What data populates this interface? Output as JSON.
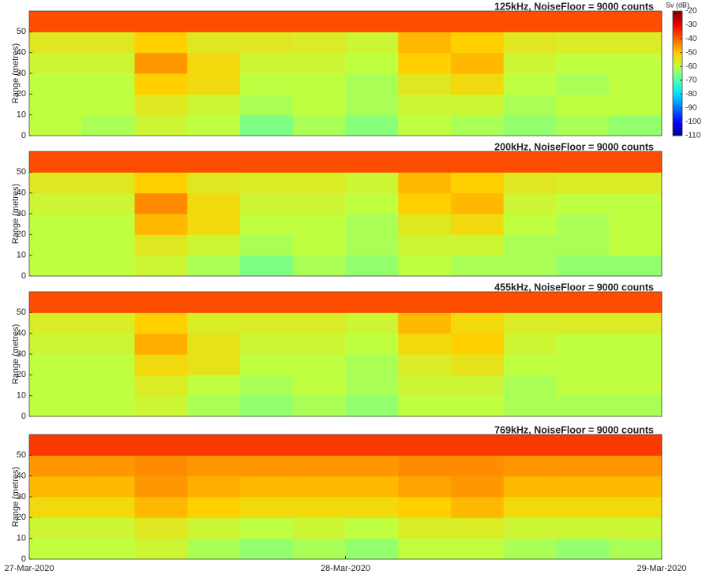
{
  "chart_data": [
    {
      "type": "heatmap",
      "title": "125kHz, NoiseFloor = 9000 counts",
      "ylabel": "Range (metres)",
      "x_bins": [
        "2020-03-27T00:00",
        "2020-03-27T04:00",
        "2020-03-27T08:00",
        "2020-03-27T12:00",
        "2020-03-27T16:00",
        "2020-03-27T20:00",
        "2020-03-28T00:00",
        "2020-03-28T04:00",
        "2020-03-28T08:00",
        "2020-03-28T12:00",
        "2020-03-28T16:00",
        "2020-03-28T20:00",
        "2020-03-29T00:00"
      ],
      "y_bins": [
        0,
        10,
        20,
        30,
        40,
        50,
        60
      ],
      "values": [
        [
          -60,
          -62,
          -58,
          -60,
          -66,
          -62,
          -65,
          -60,
          -62,
          -64,
          -62,
          -64
        ],
        [
          -60,
          -60,
          -55,
          -58,
          -62,
          -60,
          -62,
          -58,
          -58,
          -62,
          -60,
          -60
        ],
        [
          -60,
          -60,
          -50,
          -52,
          -60,
          -60,
          -62,
          -55,
          -52,
          -60,
          -62,
          -60
        ],
        [
          -58,
          -58,
          -45,
          -52,
          -58,
          -58,
          -60,
          -50,
          -48,
          -58,
          -60,
          -60
        ],
        [
          -55,
          -55,
          -50,
          -55,
          -55,
          -56,
          -58,
          -48,
          -50,
          -55,
          -56,
          -56
        ],
        [
          -38,
          -38,
          -38,
          -38,
          -38,
          -38,
          -38,
          -38,
          -38,
          -38,
          -38,
          -38
        ]
      ],
      "xlim": [
        "2020-03-27T00:00",
        "2020-03-29T00:00"
      ],
      "ylim": [
        0,
        60
      ],
      "yticks": [
        0,
        10,
        20,
        30,
        40,
        50
      ]
    },
    {
      "type": "heatmap",
      "title": "200kHz, NoiseFloor = 9000 counts",
      "ylabel": "Range (metres)",
      "x_bins": [
        "2020-03-27T00:00",
        "2020-03-27T04:00",
        "2020-03-27T08:00",
        "2020-03-27T12:00",
        "2020-03-27T16:00",
        "2020-03-27T20:00",
        "2020-03-28T00:00",
        "2020-03-28T04:00",
        "2020-03-28T08:00",
        "2020-03-28T12:00",
        "2020-03-28T16:00",
        "2020-03-28T20:00",
        "2020-03-29T00:00"
      ],
      "y_bins": [
        0,
        10,
        20,
        30,
        40,
        50,
        60
      ],
      "values": [
        [
          -60,
          -60,
          -58,
          -62,
          -66,
          -62,
          -64,
          -60,
          -62,
          -62,
          -64,
          -64
        ],
        [
          -60,
          -60,
          -55,
          -58,
          -62,
          -60,
          -62,
          -58,
          -58,
          -62,
          -62,
          -60
        ],
        [
          -60,
          -60,
          -48,
          -52,
          -60,
          -60,
          -62,
          -55,
          -52,
          -60,
          -62,
          -60
        ],
        [
          -58,
          -58,
          -44,
          -52,
          -58,
          -58,
          -60,
          -50,
          -48,
          -58,
          -60,
          -60
        ],
        [
          -55,
          -55,
          -50,
          -55,
          -56,
          -56,
          -58,
          -48,
          -50,
          -55,
          -56,
          -56
        ],
        [
          -38,
          -38,
          -38,
          -38,
          -38,
          -38,
          -38,
          -38,
          -38,
          -38,
          -38,
          -38
        ]
      ],
      "xlim": [
        "2020-03-27T00:00",
        "2020-03-29T00:00"
      ],
      "ylim": [
        0,
        60
      ],
      "yticks": [
        0,
        10,
        20,
        30,
        40,
        50
      ]
    },
    {
      "type": "heatmap",
      "title": "455kHz, NoiseFloor = 9000 counts",
      "ylabel": "Range (metres)",
      "x_bins": [
        "2020-03-27T00:00",
        "2020-03-27T04:00",
        "2020-03-27T08:00",
        "2020-03-27T12:00",
        "2020-03-27T16:00",
        "2020-03-27T20:00",
        "2020-03-28T00:00",
        "2020-03-28T04:00",
        "2020-03-28T08:00",
        "2020-03-28T12:00",
        "2020-03-28T16:00",
        "2020-03-28T20:00",
        "2020-03-29T00:00"
      ],
      "y_bins": [
        0,
        10,
        20,
        30,
        40,
        50,
        60
      ],
      "values": [
        [
          -60,
          -60,
          -58,
          -62,
          -64,
          -62,
          -64,
          -60,
          -60,
          -62,
          -62,
          -62
        ],
        [
          -60,
          -60,
          -56,
          -60,
          -62,
          -60,
          -62,
          -58,
          -58,
          -62,
          -60,
          -60
        ],
        [
          -60,
          -60,
          -52,
          -54,
          -60,
          -60,
          -62,
          -56,
          -54,
          -60,
          -60,
          -60
        ],
        [
          -58,
          -58,
          -47,
          -54,
          -58,
          -58,
          -60,
          -52,
          -50,
          -58,
          -60,
          -60
        ],
        [
          -56,
          -56,
          -50,
          -56,
          -56,
          -56,
          -58,
          -48,
          -52,
          -56,
          -56,
          -56
        ],
        [
          -38,
          -38,
          -38,
          -38,
          -38,
          -38,
          -38,
          -38,
          -38,
          -38,
          -38,
          -38
        ]
      ],
      "xlim": [
        "2020-03-27T00:00",
        "2020-03-29T00:00"
      ],
      "ylim": [
        0,
        60
      ],
      "yticks": [
        0,
        10,
        20,
        30,
        40,
        50
      ]
    },
    {
      "type": "heatmap",
      "title": "769kHz, NoiseFloor = 9000 counts",
      "ylabel": "Range (metres)",
      "x_bins": [
        "2020-03-27T00:00",
        "2020-03-27T04:00",
        "2020-03-27T08:00",
        "2020-03-27T12:00",
        "2020-03-27T16:00",
        "2020-03-27T20:00",
        "2020-03-28T00:00",
        "2020-03-28T04:00",
        "2020-03-28T08:00",
        "2020-03-28T12:00",
        "2020-03-28T16:00",
        "2020-03-28T20:00",
        "2020-03-29T00:00"
      ],
      "y_bins": [
        0,
        10,
        20,
        30,
        40,
        50,
        60
      ],
      "values": [
        [
          -60,
          -60,
          -58,
          -62,
          -64,
          -62,
          -64,
          -60,
          -60,
          -62,
          -64,
          -62
        ],
        [
          -58,
          -58,
          -55,
          -58,
          -60,
          -58,
          -60,
          -56,
          -56,
          -58,
          -58,
          -58
        ],
        [
          -52,
          -52,
          -48,
          -50,
          -52,
          -52,
          -52,
          -50,
          -48,
          -52,
          -52,
          -52
        ],
        [
          -48,
          -48,
          -45,
          -47,
          -48,
          -48,
          -48,
          -46,
          -45,
          -48,
          -48,
          -48
        ],
        [
          -45,
          -45,
          -44,
          -45,
          -45,
          -45,
          -45,
          -44,
          -44,
          -45,
          -45,
          -45
        ],
        [
          -36,
          -36,
          -36,
          -36,
          -36,
          -36,
          -36,
          -36,
          -36,
          -36,
          -36,
          -36
        ]
      ],
      "xlim": [
        "2020-03-27T00:00",
        "2020-03-29T00:00"
      ],
      "ylim": [
        0,
        60
      ],
      "yticks": [
        0,
        10,
        20,
        30,
        40,
        50
      ],
      "xticks": [
        {
          "value": "2020-03-27T00:00",
          "label": "27-Mar-2020"
        },
        {
          "value": "2020-03-28T00:00",
          "label": "28-Mar-2020"
        },
        {
          "value": "2020-03-29T00:00",
          "label": "29-Mar-2020"
        }
      ]
    },
    {
      "type": "colorbar",
      "title": "Sv (dB)",
      "ylim": [
        -110,
        -20
      ],
      "yticks": [
        -110,
        -100,
        -90,
        -80,
        -70,
        -60,
        -50,
        -40,
        -30,
        -20
      ],
      "colormap": [
        "#00008f",
        "#0000ff",
        "#0070ff",
        "#00dfff",
        "#50ffaf",
        "#bfff40",
        "#ffcf00",
        "#ff6000",
        "#ef0000",
        "#800000"
      ]
    }
  ]
}
